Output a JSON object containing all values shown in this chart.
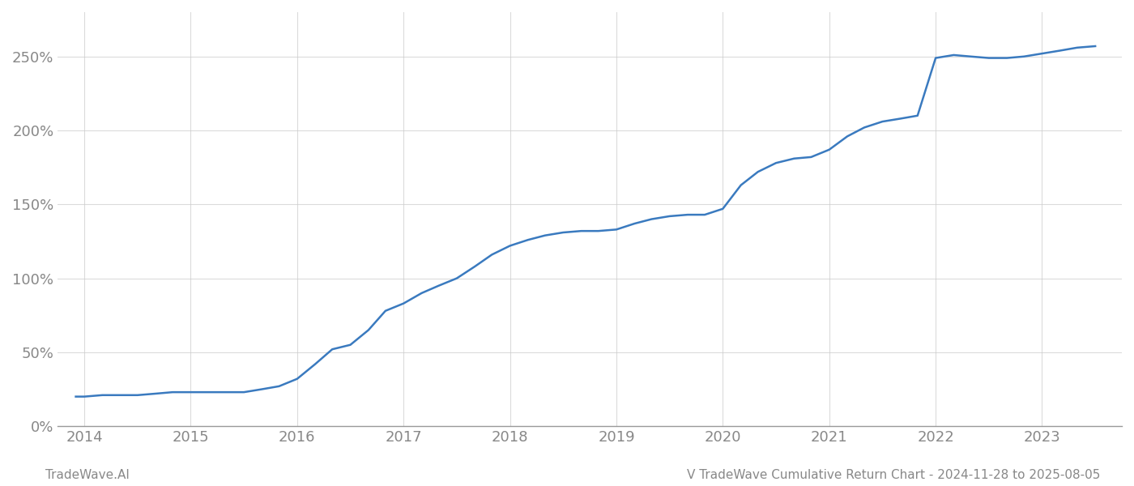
{
  "title": "V TradeWave Cumulative Return Chart - 2024-11-28 to 2025-08-05",
  "watermark": "TradeWave.AI",
  "line_color": "#3a7abf",
  "line_width": 1.8,
  "background_color": "#ffffff",
  "grid_color": "#cccccc",
  "x_years": [
    2014,
    2015,
    2016,
    2017,
    2018,
    2019,
    2020,
    2021,
    2022,
    2023
  ],
  "x_data": [
    2013.92,
    2014.0,
    2014.17,
    2014.33,
    2014.5,
    2014.67,
    2014.83,
    2015.0,
    2015.17,
    2015.33,
    2015.5,
    2015.67,
    2015.83,
    2016.0,
    2016.17,
    2016.33,
    2016.5,
    2016.67,
    2016.83,
    2017.0,
    2017.17,
    2017.33,
    2017.5,
    2017.67,
    2017.83,
    2018.0,
    2018.17,
    2018.33,
    2018.5,
    2018.67,
    2018.83,
    2019.0,
    2019.17,
    2019.33,
    2019.5,
    2019.67,
    2019.83,
    2020.0,
    2020.17,
    2020.33,
    2020.5,
    2020.67,
    2020.83,
    2021.0,
    2021.17,
    2021.33,
    2021.5,
    2021.67,
    2021.83,
    2022.0,
    2022.17,
    2022.33,
    2022.5,
    2022.67,
    2022.83,
    2023.0,
    2023.17,
    2023.33,
    2023.5
  ],
  "y_data": [
    20,
    20,
    21,
    21,
    21,
    22,
    23,
    23,
    23,
    23,
    23,
    25,
    27,
    32,
    42,
    52,
    55,
    65,
    78,
    83,
    90,
    95,
    100,
    108,
    116,
    122,
    126,
    129,
    131,
    132,
    132,
    133,
    137,
    140,
    142,
    143,
    143,
    147,
    163,
    172,
    178,
    181,
    182,
    187,
    196,
    202,
    206,
    208,
    210,
    249,
    251,
    250,
    249,
    249,
    250,
    252,
    254,
    256,
    257
  ],
  "ylim": [
    0,
    280
  ],
  "yticks": [
    0,
    50,
    100,
    150,
    200,
    250
  ],
  "ytick_labels": [
    "0%",
    "50%",
    "100%",
    "150%",
    "200%",
    "250%"
  ],
  "xlim": [
    2013.75,
    2023.75
  ],
  "tick_label_color": "#888888",
  "tick_fontsize": 13,
  "footer_fontsize": 11,
  "title_fontsize": 11
}
